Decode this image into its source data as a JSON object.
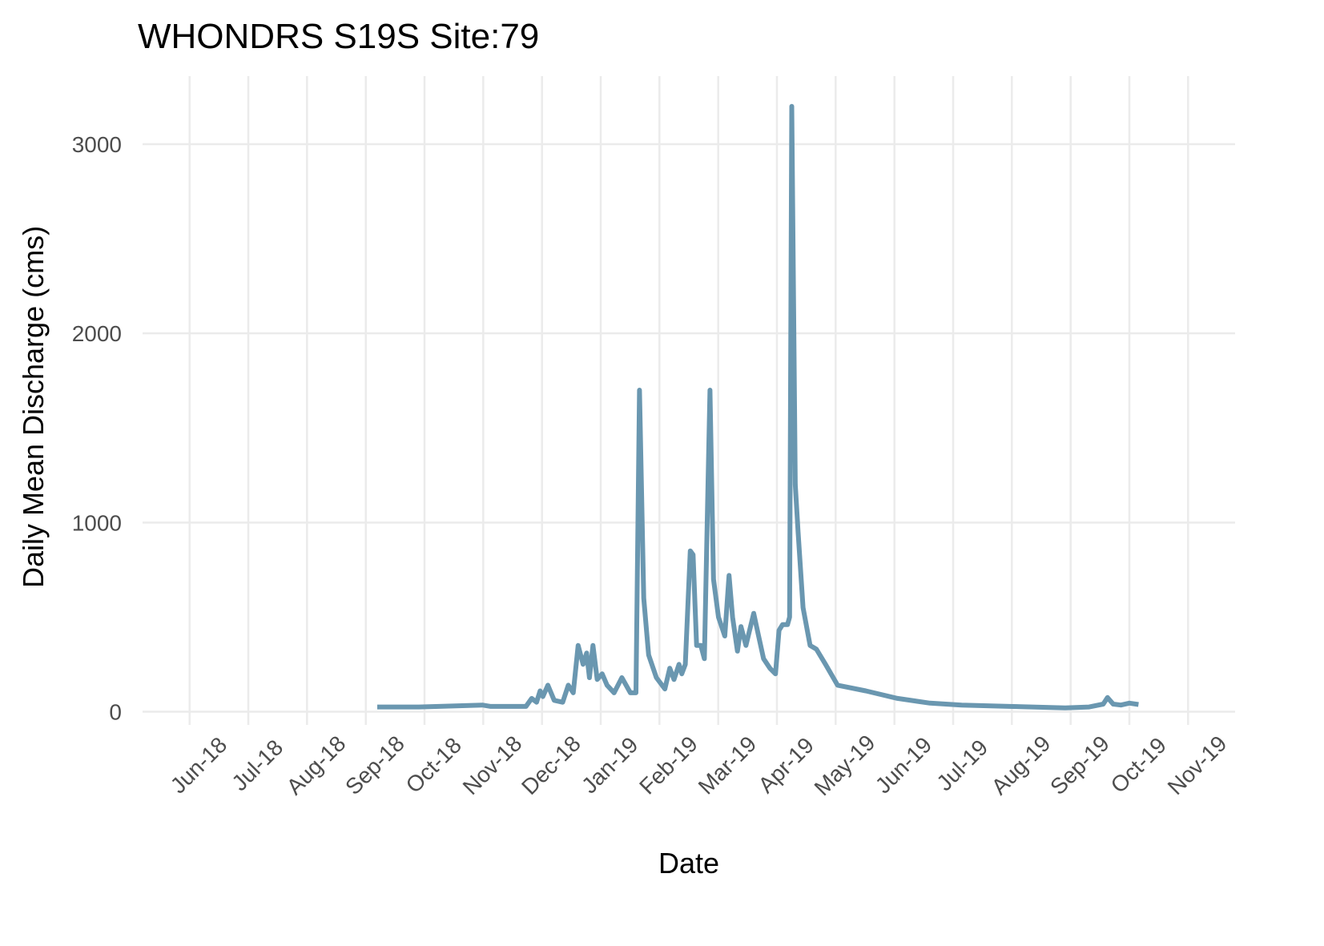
{
  "chart_data": {
    "type": "line",
    "title": "WHONDRS S19S Site:79",
    "x_label": "Date",
    "y_label": "Daily Mean Discharge (cms)",
    "grid": true,
    "xlim": [
      2018.35,
      2019.9
    ],
    "xticks": [
      {
        "value": 2018.4167,
        "label": "Jun-18"
      },
      {
        "value": 2018.5,
        "label": "Jul-18"
      },
      {
        "value": 2018.5833,
        "label": "Aug-18"
      },
      {
        "value": 2018.6667,
        "label": "Sep-18"
      },
      {
        "value": 2018.75,
        "label": "Oct-18"
      },
      {
        "value": 2018.8333,
        "label": "Nov-18"
      },
      {
        "value": 2018.9167,
        "label": "Dec-18"
      },
      {
        "value": 2019.0,
        "label": "Jan-19"
      },
      {
        "value": 2019.0833,
        "label": "Feb-19"
      },
      {
        "value": 2019.1667,
        "label": "Mar-19"
      },
      {
        "value": 2019.25,
        "label": "Apr-19"
      },
      {
        "value": 2019.3333,
        "label": "May-19"
      },
      {
        "value": 2019.4167,
        "label": "Jun-19"
      },
      {
        "value": 2019.5,
        "label": "Jul-19"
      },
      {
        "value": 2019.5833,
        "label": "Aug-19"
      },
      {
        "value": 2019.6667,
        "label": "Sep-19"
      },
      {
        "value": 2019.75,
        "label": "Oct-19"
      },
      {
        "value": 2019.8333,
        "label": "Nov-19"
      }
    ],
    "ylim": [
      -70,
      3360
    ],
    "yticks": [
      0,
      1000,
      2000,
      3000
    ],
    "series": [
      {
        "color": "#6a97b0",
        "x": [
          2018.683,
          2018.742,
          2018.832,
          2018.844,
          2018.894,
          2018.902,
          2018.909,
          2018.914,
          2018.918,
          2018.925,
          2018.934,
          2018.946,
          2018.954,
          2018.961,
          2018.968,
          2018.975,
          2018.98,
          2018.984,
          2018.989,
          2018.995,
          2019.002,
          2019.009,
          2019.019,
          2019.03,
          2019.042,
          2019.05,
          2019.055,
          2019.061,
          2019.068,
          2019.079,
          2019.091,
          2019.098,
          2019.104,
          2019.111,
          2019.115,
          2019.12,
          2019.127,
          2019.131,
          2019.136,
          2019.142,
          2019.147,
          2019.155,
          2019.16,
          2019.167,
          2019.176,
          2019.182,
          2019.187,
          2019.194,
          2019.199,
          2019.206,
          2019.217,
          2019.224,
          2019.231,
          2019.24,
          2019.248,
          2019.253,
          2019.258,
          2019.265,
          2019.268,
          2019.271,
          2019.276,
          2019.28,
          2019.287,
          2019.297,
          2019.306,
          2019.319,
          2019.336,
          2019.376,
          2019.421,
          2019.467,
          2019.512,
          2019.58,
          2019.659,
          2019.693,
          2019.713,
          2019.719,
          2019.727,
          2019.738,
          2019.75,
          2019.763
        ],
        "values": [
          25,
          25,
          35,
          28,
          28,
          70,
          50,
          110,
          80,
          140,
          60,
          50,
          140,
          100,
          350,
          250,
          310,
          180,
          350,
          170,
          200,
          140,
          100,
          180,
          100,
          100,
          1700,
          600,
          300,
          180,
          120,
          230,
          170,
          250,
          200,
          250,
          850,
          830,
          350,
          350,
          280,
          1700,
          700,
          500,
          400,
          720,
          500,
          320,
          450,
          350,
          520,
          400,
          280,
          230,
          200,
          430,
          460,
          460,
          500,
          3200,
          1200,
          950,
          550,
          350,
          330,
          250,
          140,
          110,
          70,
          45,
          35,
          28,
          20,
          25,
          40,
          75,
          40,
          35,
          45,
          38
        ]
      }
    ]
  }
}
